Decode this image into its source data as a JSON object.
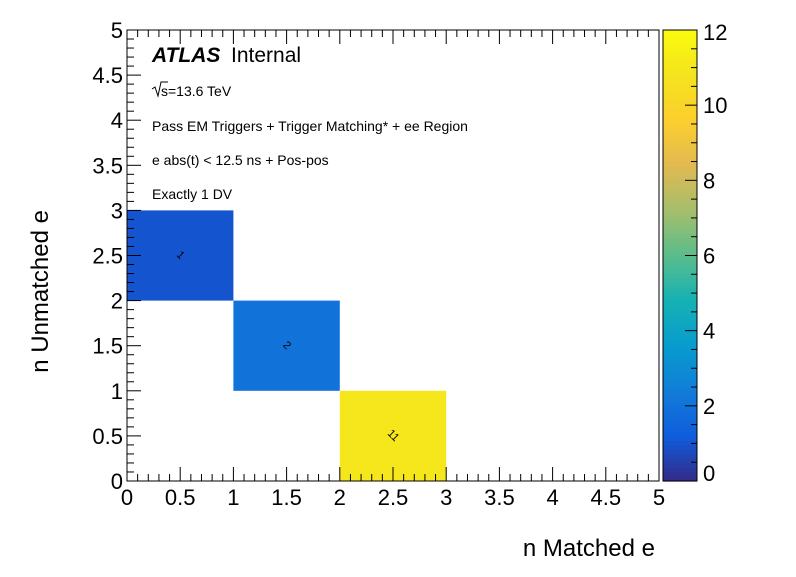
{
  "chart_data": {
    "type": "heatmap",
    "xlabel": "n Matched e",
    "ylabel": "n Unmatched e",
    "xlim": [
      0,
      5
    ],
    "ylim": [
      0,
      5
    ],
    "x_ticks": [
      "0",
      "0.5",
      "1",
      "1.5",
      "2",
      "2.5",
      "3",
      "3.5",
      "4",
      "4.5",
      "5"
    ],
    "y_ticks": [
      "0",
      "0.5",
      "1",
      "1.5",
      "2",
      "2.5",
      "3",
      "3.5",
      "4",
      "4.5",
      "5"
    ],
    "bin_width": 1,
    "cells": [
      {
        "x": 0,
        "y": 2,
        "value": 1,
        "label": "1"
      },
      {
        "x": 1,
        "y": 1,
        "value": 2,
        "label": "2"
      },
      {
        "x": 2,
        "y": 0,
        "value": 11,
        "label": "11"
      }
    ],
    "colorbar": {
      "min": 0,
      "max": 12,
      "ticks": [
        "0",
        "2",
        "4",
        "6",
        "8",
        "10",
        "12"
      ],
      "colormap": "parula"
    },
    "grid": false,
    "annotations": {
      "atlas": "ATLAS",
      "internal": "Internal",
      "energy": "s=13.6 TeV",
      "line1": "Pass EM Triggers + Trigger Matching* + ee Region",
      "line2": "e abs(t) < 12.5 ns + Pos-pos",
      "line3": "Exactly 1 DV"
    }
  }
}
